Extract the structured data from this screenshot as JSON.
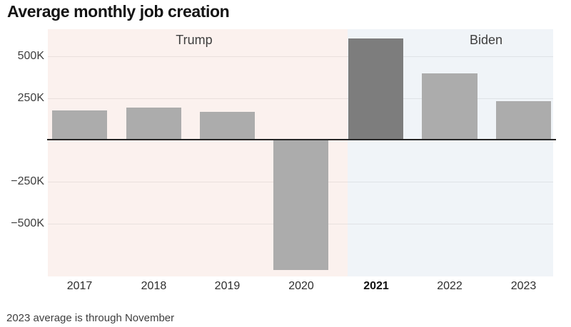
{
  "title": "Average monthly job creation",
  "footnote": "2023 average is through November",
  "colors": {
    "title_text": "#141414",
    "label_text": "#3e3e3e",
    "tick_text": "#2e2e2e",
    "trump_band": "#fbf1ee",
    "biden_band": "#f0f4f8",
    "bar": "#acacac",
    "bar_highlight": "#7d7d7d",
    "grid": "#00000012",
    "zero_line": "#262626"
  },
  "chart_data": {
    "type": "bar",
    "title": "Average monthly job creation",
    "xlabel": "",
    "ylabel": "",
    "categories": [
      "2017",
      "2018",
      "2019",
      "2020",
      "2021",
      "2022",
      "2023"
    ],
    "values": [
      176000,
      192000,
      166000,
      -774000,
      606000,
      399000,
      232000
    ],
    "highlighted_category": "2021",
    "ylim": [
      -814000,
      661000
    ],
    "yticks": [
      {
        "value": 500000,
        "label": "500K"
      },
      {
        "value": 250000,
        "label": "250K"
      },
      {
        "value": -250000,
        "label": "−250K"
      },
      {
        "value": -500000,
        "label": "−500K"
      }
    ],
    "grid": "horizontal",
    "legend": "none",
    "annotations": [
      {
        "text": "Trump",
        "span": [
          "2017",
          "2020"
        ],
        "band_color": "#fbf1ee"
      },
      {
        "text": "Biden",
        "span": [
          "2021",
          "2023"
        ],
        "band_color": "#f0f4f8"
      }
    ],
    "note": "2023 average is through November"
  }
}
